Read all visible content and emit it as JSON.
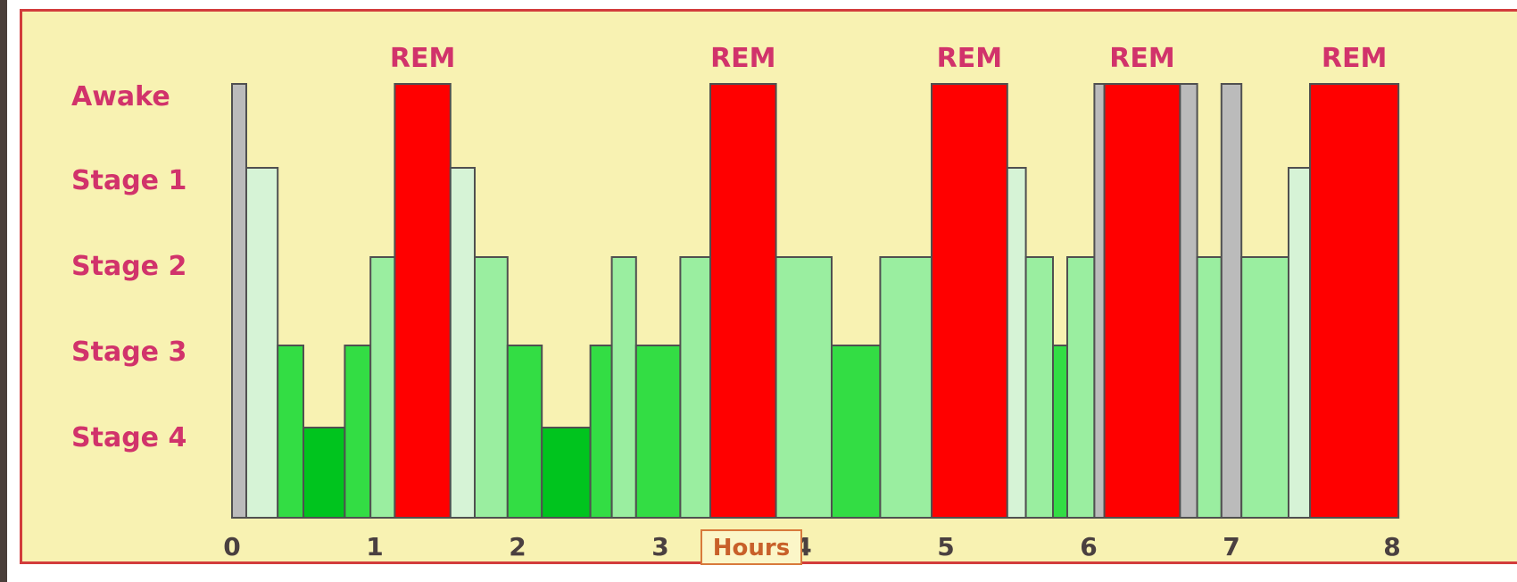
{
  "chart_data": {
    "type": "bar",
    "xlabel": "Hours",
    "xlim": [
      0,
      8
    ],
    "x_ticks": [
      "0",
      "1",
      "2",
      "3",
      "4",
      "5",
      "6",
      "7",
      "8"
    ],
    "y_levels": [
      "Awake",
      "Stage 1",
      "Stage 2",
      "Stage 3",
      "Stage 4"
    ],
    "rem_label": "REM",
    "colors": {
      "Awake": "#bbbbbb",
      "Stage 1": "#d6f3d6",
      "Stage 2": "#9aeea0",
      "Stage 3": "#33dd44",
      "Stage 4": "#00c41e",
      "REM": "#ff0000"
    },
    "segments": [
      {
        "start": 0.0,
        "end": 0.1,
        "stage": "Awake"
      },
      {
        "start": 0.1,
        "end": 0.32,
        "stage": "Stage 1"
      },
      {
        "start": 0.32,
        "end": 0.5,
        "stage": "Stage 3"
      },
      {
        "start": 0.5,
        "end": 0.79,
        "stage": "Stage 4"
      },
      {
        "start": 0.79,
        "end": 0.97,
        "stage": "Stage 3"
      },
      {
        "start": 0.97,
        "end": 1.14,
        "stage": "Stage 2"
      },
      {
        "start": 1.14,
        "end": 1.53,
        "stage": "REM"
      },
      {
        "start": 1.53,
        "end": 1.7,
        "stage": "Stage 1"
      },
      {
        "start": 1.7,
        "end": 1.93,
        "stage": "Stage 2"
      },
      {
        "start": 1.93,
        "end": 2.17,
        "stage": "Stage 3"
      },
      {
        "start": 2.17,
        "end": 2.51,
        "stage": "Stage 4"
      },
      {
        "start": 2.51,
        "end": 2.66,
        "stage": "Stage 3"
      },
      {
        "start": 2.66,
        "end": 2.83,
        "stage": "Stage 2"
      },
      {
        "start": 2.83,
        "end": 3.14,
        "stage": "Stage 3"
      },
      {
        "start": 3.14,
        "end": 3.35,
        "stage": "Stage 2"
      },
      {
        "start": 3.35,
        "end": 3.81,
        "stage": "REM"
      },
      {
        "start": 3.81,
        "end": 4.2,
        "stage": "Stage 2"
      },
      {
        "start": 4.2,
        "end": 4.54,
        "stage": "Stage 3"
      },
      {
        "start": 4.54,
        "end": 4.9,
        "stage": "Stage 2"
      },
      {
        "start": 4.9,
        "end": 5.43,
        "stage": "REM"
      },
      {
        "start": 5.43,
        "end": 5.56,
        "stage": "Stage 1"
      },
      {
        "start": 5.56,
        "end": 5.75,
        "stage": "Stage 2"
      },
      {
        "start": 5.75,
        "end": 5.85,
        "stage": "Stage 3"
      },
      {
        "start": 5.85,
        "end": 6.04,
        "stage": "Stage 2"
      },
      {
        "start": 6.04,
        "end": 6.11,
        "stage": "Awake"
      },
      {
        "start": 6.11,
        "end": 6.64,
        "stage": "REM"
      },
      {
        "start": 6.64,
        "end": 6.76,
        "stage": "Awake"
      },
      {
        "start": 6.76,
        "end": 6.93,
        "stage": "Stage 2"
      },
      {
        "start": 6.93,
        "end": 7.07,
        "stage": "Awake"
      },
      {
        "start": 7.07,
        "end": 7.4,
        "stage": "Stage 2"
      },
      {
        "start": 7.4,
        "end": 7.55,
        "stage": "Stage 1"
      },
      {
        "start": 7.55,
        "end": 8.17,
        "stage": "REM"
      }
    ]
  }
}
